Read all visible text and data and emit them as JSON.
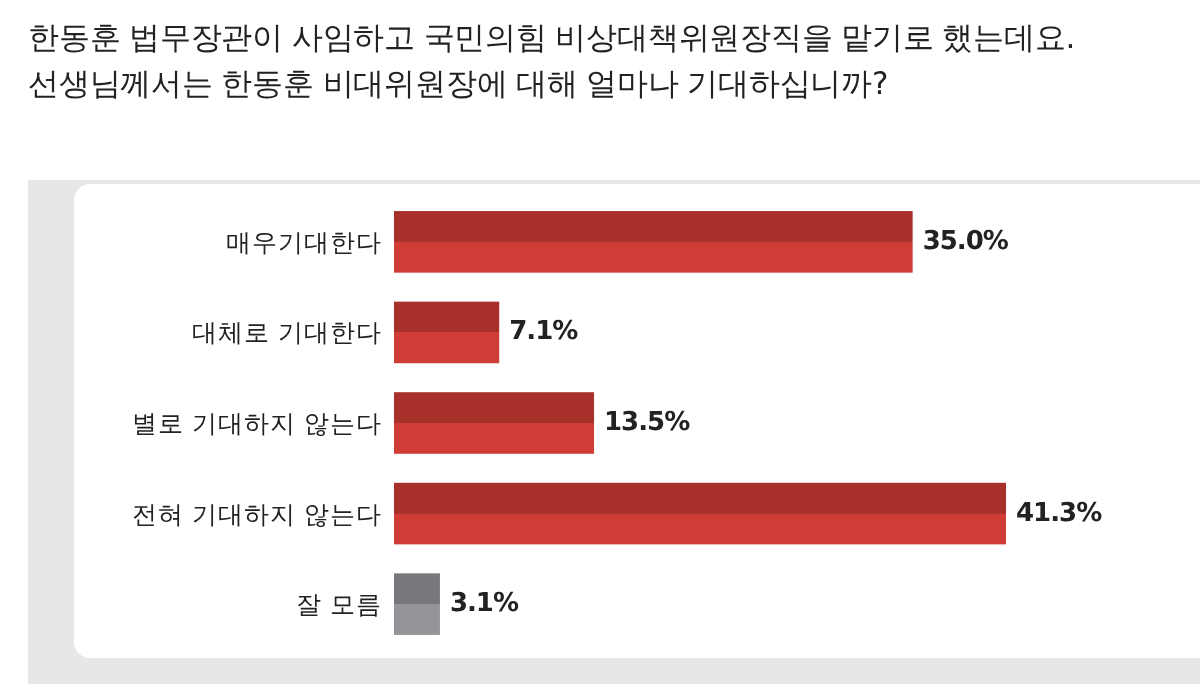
{
  "chart_data": {
    "type": "bar",
    "orientation": "horizontal",
    "title": "한동훈 법무장관이 사임하고 국민의힘 비상대책위원장직을 맡기로 했는데요.\n선생님께서는 한동훈 비대위원장에 대해 얼마나 기대하십니까?",
    "categories": [
      "매우기대한다",
      "대체로 기대한다",
      "별로 기대하지 않는다",
      "전혀 기대하지 않는다",
      "잘 모름"
    ],
    "values": [
      35.0,
      7.1,
      13.5,
      41.3,
      3.1
    ],
    "colors": [
      "#d03d36",
      "#d03d36",
      "#d03d36",
      "#d03d36",
      "#939598"
    ],
    "value_labels": [
      "35.0%",
      "7.1%",
      "13.5%",
      "41.3%",
      "3.1%"
    ]
  }
}
